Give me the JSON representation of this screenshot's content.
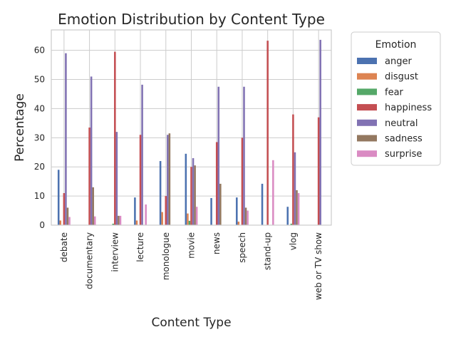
{
  "chart_data": {
    "type": "bar",
    "title": "Emotion Distribution by Content Type",
    "xlabel": "Content Type",
    "ylabel": "Percentage",
    "ylim": [
      0,
      67
    ],
    "yticks": [
      0,
      10,
      20,
      30,
      40,
      50,
      60
    ],
    "grid": true,
    "legend_title": "Emotion",
    "legend_position": "outside-right",
    "categories": [
      "debate",
      "documentary",
      "interview",
      "lecture",
      "monologue",
      "movie",
      "news",
      "speech",
      "stand-up",
      "vlog",
      "web or TV show"
    ],
    "series": [
      {
        "name": "anger",
        "color": "#4c72b0",
        "values": [
          19.0,
          0.0,
          0.0,
          9.5,
          22.0,
          24.5,
          9.3,
          9.5,
          14.2,
          6.3,
          0.0
        ]
      },
      {
        "name": "disgust",
        "color": "#dd8452",
        "values": [
          1.6,
          0.0,
          0.0,
          1.6,
          4.5,
          4.0,
          0.0,
          1.2,
          0.0,
          0.0,
          0.0
        ]
      },
      {
        "name": "fear",
        "color": "#55a868",
        "values": [
          0.0,
          0.0,
          0.5,
          0.0,
          0.0,
          1.5,
          0.0,
          0.0,
          0.0,
          0.5,
          0.0
        ]
      },
      {
        "name": "happiness",
        "color": "#c44e52",
        "values": [
          11.0,
          33.5,
          59.5,
          31.0,
          10.0,
          20.0,
          28.5,
          30.0,
          63.3,
          38.0,
          37.0
        ]
      },
      {
        "name": "neutral",
        "color": "#8172b3",
        "values": [
          59.0,
          51.0,
          32.0,
          48.2,
          31.0,
          23.0,
          47.5,
          47.5,
          0.0,
          25.0,
          63.6
        ]
      },
      {
        "name": "sadness",
        "color": "#937860",
        "values": [
          6.0,
          13.0,
          3.2,
          0.0,
          31.5,
          20.5,
          14.2,
          6.0,
          0.0,
          12.0,
          0.0
        ]
      },
      {
        "name": "surprise",
        "color": "#da8bc3",
        "values": [
          2.8,
          3.0,
          3.2,
          7.1,
          0.0,
          6.3,
          0.0,
          5.0,
          22.3,
          11.0,
          0.0
        ]
      }
    ]
  }
}
